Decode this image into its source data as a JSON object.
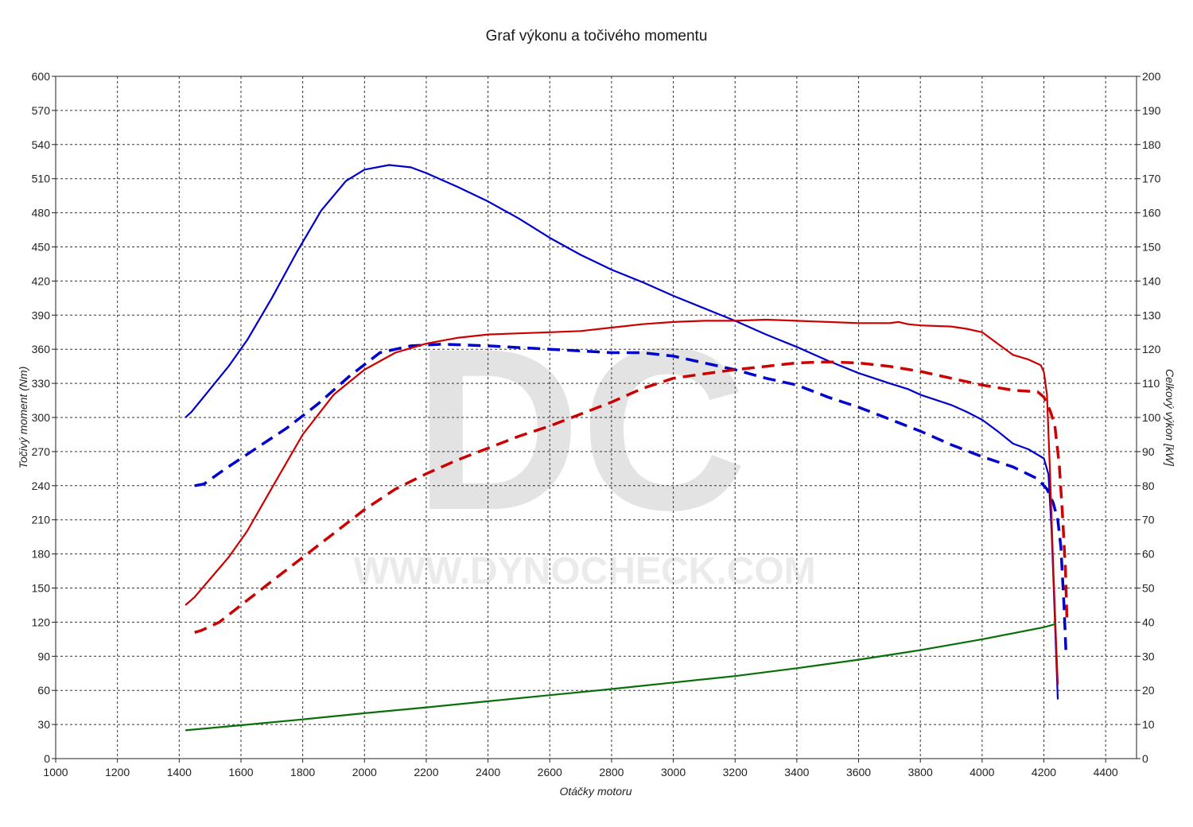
{
  "chart_data": {
    "type": "line",
    "title": "Graf výkonu a točivého momentu",
    "xlabel": "Otáčky motoru",
    "ylabel_left": "Točivý moment (Nm)",
    "ylabel_right": "Celkový výkon [kW]",
    "xlim": [
      1000,
      4500
    ],
    "ylim_left": [
      0,
      600
    ],
    "ylim_right": [
      0,
      200
    ],
    "x_ticks": [
      1000,
      1200,
      1400,
      1600,
      1800,
      2000,
      2200,
      2400,
      2600,
      2800,
      3000,
      3200,
      3400,
      3600,
      3800,
      4000,
      4200,
      4400
    ],
    "y_ticks_left": [
      0,
      30,
      60,
      90,
      120,
      150,
      180,
      210,
      240,
      270,
      300,
      330,
      360,
      390,
      420,
      450,
      480,
      510,
      540,
      570,
      600
    ],
    "y_ticks_right": [
      0,
      10,
      20,
      30,
      40,
      50,
      60,
      70,
      80,
      90,
      100,
      110,
      120,
      130,
      140,
      150,
      160,
      170,
      180,
      190,
      200
    ],
    "grid": true,
    "watermark": {
      "logo": "DC",
      "url": "WWW.DYNOCHECK.COM"
    },
    "series": [
      {
        "id": "torque_tuned",
        "axis": "left",
        "color": "#0000cc",
        "style": "solid",
        "x": [
          1420,
          1440,
          1500,
          1560,
          1620,
          1700,
          1780,
          1860,
          1940,
          2000,
          2080,
          2150,
          2200,
          2300,
          2400,
          2500,
          2600,
          2700,
          2800,
          2900,
          3000,
          3100,
          3200,
          3300,
          3400,
          3500,
          3600,
          3700,
          3760,
          3800,
          3900,
          3950,
          4000,
          4050,
          4100,
          4150,
          4200,
          4215,
          4225,
          4232,
          4240,
          4245
        ],
        "y": [
          300,
          305,
          325,
          345,
          368,
          405,
          445,
          482,
          508,
          518,
          522,
          520,
          515,
          503,
          490,
          475,
          458,
          443,
          430,
          419,
          407,
          396,
          385,
          373,
          362,
          350,
          339,
          330,
          325,
          320,
          311,
          305,
          298,
          288,
          277,
          272,
          264,
          250,
          200,
          150,
          90,
          52
        ]
      },
      {
        "id": "power_tuned",
        "axis": "right",
        "color": "#0000cc",
        "style": "dashed",
        "x": [
          1450,
          1480,
          1550,
          1650,
          1750,
          1850,
          1950,
          2050,
          2150,
          2250,
          2400,
          2500,
          2600,
          2700,
          2800,
          2900,
          3000,
          3100,
          3200,
          3300,
          3400,
          3500,
          3600,
          3700,
          3800,
          3900,
          4000,
          4100,
          4180,
          4210,
          4230,
          4245,
          4255,
          4265,
          4272
        ],
        "y": [
          80,
          80.5,
          85,
          91,
          97,
          104,
          112,
          119,
          121,
          121.5,
          121,
          120.5,
          120,
          119.5,
          119,
          119,
          118,
          116,
          114,
          111.5,
          109.5,
          106,
          103,
          99.5,
          96,
          92,
          88.5,
          85.5,
          82,
          79,
          75,
          70,
          62,
          45,
          30
        ]
      },
      {
        "id": "torque_stock",
        "axis": "left",
        "color": "#cc0000",
        "style": "solid",
        "x": [
          1420,
          1450,
          1500,
          1560,
          1620,
          1700,
          1800,
          1900,
          2000,
          2100,
          2200,
          2300,
          2400,
          2500,
          2600,
          2700,
          2800,
          2900,
          3000,
          3100,
          3200,
          3300,
          3400,
          3500,
          3600,
          3700,
          3730,
          3760,
          3800,
          3900,
          3950,
          4000,
          4050,
          4100,
          4150,
          4190,
          4200,
          4210,
          4220,
          4230,
          4240,
          4245
        ],
        "y": [
          135,
          142,
          158,
          177,
          200,
          238,
          285,
          320,
          342,
          357,
          365,
          370,
          373,
          374,
          375,
          376,
          379,
          382,
          384,
          385,
          385,
          386,
          385,
          384,
          383,
          383,
          384,
          382,
          381,
          380,
          378,
          375,
          365,
          355,
          351,
          346,
          340,
          320,
          250,
          170,
          100,
          65
        ]
      },
      {
        "id": "power_stock",
        "axis": "right",
        "color": "#cc0000",
        "style": "dashed",
        "x": [
          1450,
          1470,
          1530,
          1600,
          1700,
          1800,
          1900,
          2000,
          2100,
          2200,
          2300,
          2400,
          2500,
          2600,
          2700,
          2800,
          2900,
          3000,
          3100,
          3200,
          3300,
          3400,
          3500,
          3600,
          3700,
          3800,
          3900,
          4000,
          4100,
          4180,
          4200,
          4220,
          4235,
          4250,
          4260,
          4270,
          4275
        ],
        "y": [
          37,
          37.5,
          40,
          45,
          52,
          59,
          66,
          73,
          79,
          83.5,
          87.5,
          91,
          94.5,
          97.5,
          101,
          104.5,
          108.5,
          111.5,
          112.8,
          114,
          115,
          116,
          116.3,
          116,
          115,
          113.5,
          111.5,
          109.5,
          108,
          107.5,
          106,
          102,
          98,
          86,
          72,
          55,
          40
        ]
      },
      {
        "id": "green_curve",
        "axis": "right",
        "color": "#0a6e0a",
        "style": "solid",
        "x": [
          1420,
          1600,
          1800,
          2000,
          2200,
          2400,
          2600,
          2800,
          3000,
          3200,
          3400,
          3600,
          3800,
          4000,
          4200,
          4240
        ],
        "y": [
          8.3,
          9.8,
          11.5,
          13.3,
          15,
          16.8,
          18.6,
          20.4,
          22.3,
          24.2,
          26.5,
          29,
          31.8,
          35,
          38.5,
          39.5
        ]
      }
    ]
  }
}
